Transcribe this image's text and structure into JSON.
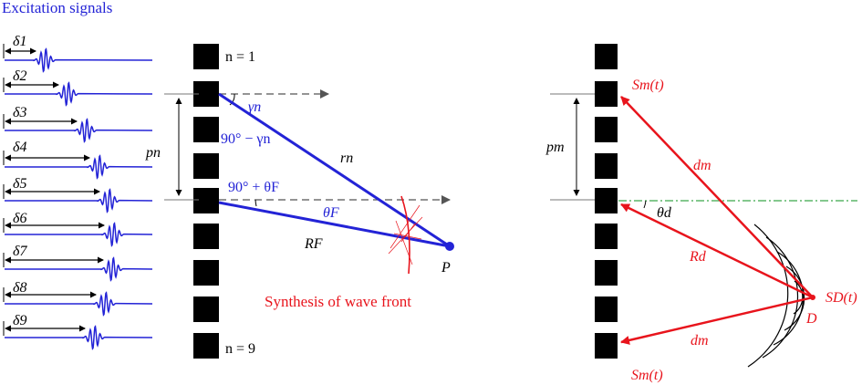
{
  "title": "Excitation signals",
  "deltas": [
    "δ1",
    "δ2",
    "δ3",
    "δ4",
    "δ5",
    "δ6",
    "δ7",
    "δ8",
    "δ9"
  ],
  "left": {
    "n_top": "n = 1",
    "n_bottom": "n = 9",
    "gamma": "γn",
    "ninety_minus_gamma": "90° − γn",
    "r_n": "rn",
    "p_n": "pn",
    "ninety_plus_theta": "90° + θF",
    "theta_F": "θF",
    "R_F": "RF",
    "P": "P",
    "synthesis": "Synthesis of wave front"
  },
  "right": {
    "S_m_top": "Sm(t)",
    "S_m_bottom": "Sm(t)",
    "d_m_top": "dm",
    "d_m_bottom": "dm",
    "p_m": "pm",
    "theta_d": "θd",
    "R_d": "Rd",
    "S_D": "SD(t)",
    "D": "D"
  },
  "colors": {
    "blue": "#2323d6",
    "red": "#e8141c",
    "green": "#3aa84a",
    "black": "#000000",
    "gray": "#666666"
  }
}
